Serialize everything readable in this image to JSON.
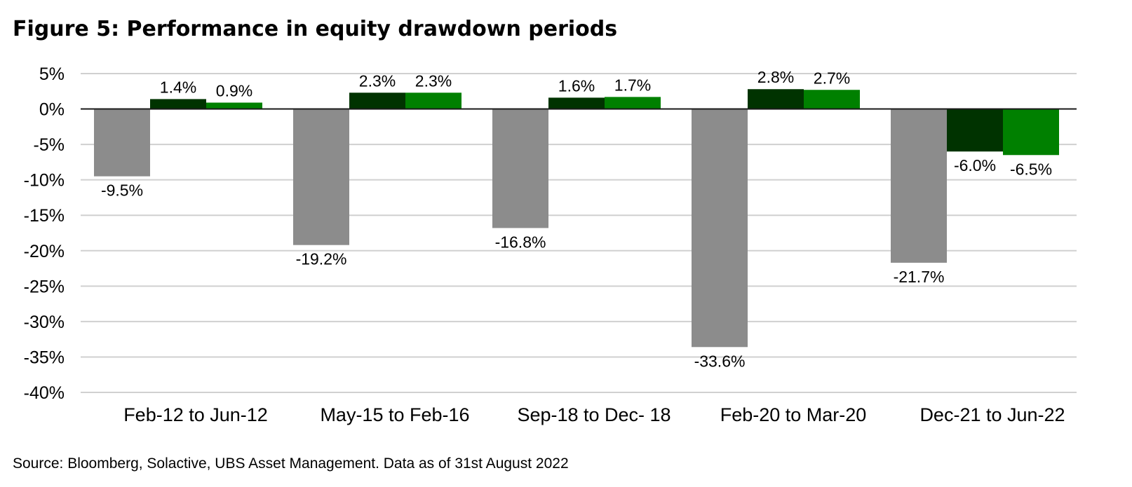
{
  "title": "Figure 5: Performance in equity drawdown periods",
  "source": "Source: Bloomberg, Solactive, UBS Asset Management. Data as of 31st August 2022",
  "chart_data": {
    "type": "bar",
    "title": "Figure 5: Performance in equity drawdown periods",
    "categories": [
      "Feb-12 to Jun-12",
      "May-15 to Feb-16",
      "Sep-18 to Dec- 18",
      "Feb-20 to Mar-20",
      "Dec-21 to Jun-22"
    ],
    "series": [
      {
        "values": [
          -9.5,
          -19.2,
          -16.8,
          -33.6,
          -21.7
        ],
        "labels": [
          "-9.5%",
          "-19.2%",
          "-16.8%",
          "-33.6%",
          "-21.7%"
        ],
        "color": "#8c8c8c"
      },
      {
        "values": [
          1.4,
          2.3,
          1.6,
          2.8,
          -6.0
        ],
        "labels": [
          "1.4%",
          "2.3%",
          "1.6%",
          "2.8%",
          "-6.0%"
        ],
        "color": "#003300"
      },
      {
        "values": [
          0.9,
          2.3,
          1.7,
          2.7,
          -6.5
        ],
        "labels": [
          "0.9%",
          "2.3%",
          "1.7%",
          "2.7%",
          "-6.5%"
        ],
        "color": "#008000"
      }
    ],
    "ylim": [
      -40,
      5
    ],
    "yticks": [
      5,
      0,
      -5,
      -10,
      -15,
      -20,
      -25,
      -30,
      -35,
      -40
    ],
    "ytick_labels": [
      "5%",
      "0%",
      "-5%",
      "-10%",
      "-15%",
      "-20%",
      "-25%",
      "-30%",
      "-35%",
      "-40%"
    ],
    "grid": true,
    "xlabel": "",
    "ylabel": ""
  }
}
